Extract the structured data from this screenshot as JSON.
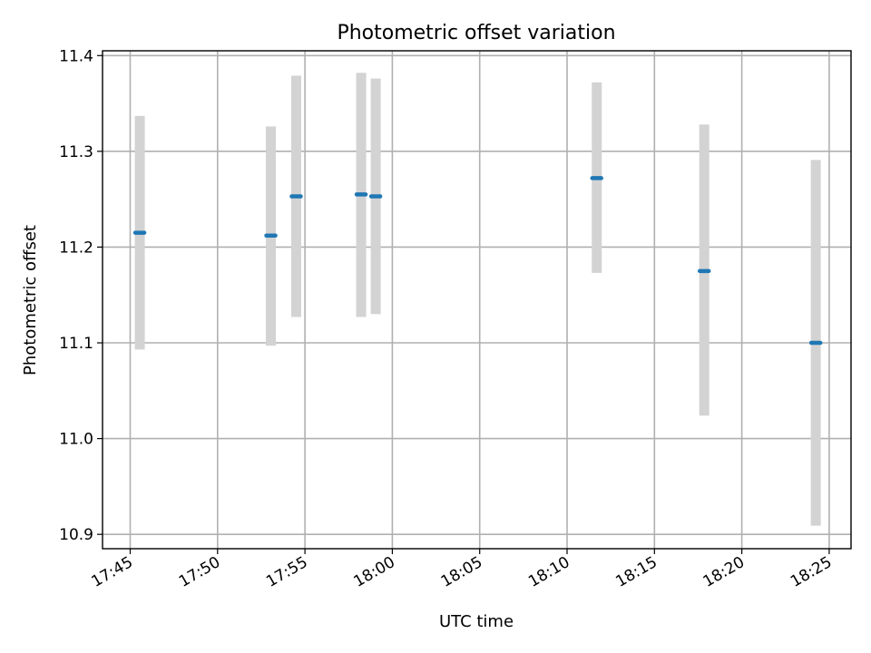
{
  "chart_data": {
    "type": "scatter",
    "title": "Photometric offset variation",
    "xlabel": "UTC time",
    "ylabel": "Photometric offset",
    "grid": true,
    "x_tick_labels": [
      "17:45",
      "17:50",
      "17:55",
      "18:00",
      "18:05",
      "18:10",
      "18:15",
      "18:20",
      "18:25"
    ],
    "y_tick_values": [
      10.9,
      11.0,
      11.1,
      11.2,
      11.3,
      11.4
    ],
    "y_tick_labels": [
      "10.9",
      "11.0",
      "11.1",
      "11.2",
      "11.3",
      "11.4"
    ],
    "xlim": [
      "17:43:25",
      "18:26:15"
    ],
    "ylim": [
      10.885,
      11.405
    ],
    "series": [
      {
        "points": [
          {
            "x": "17:45:33",
            "y": 11.215,
            "err_low": 11.093,
            "err_high": 11.337
          },
          {
            "x": "17:53:03",
            "y": 11.212,
            "err_low": 11.097,
            "err_high": 11.326
          },
          {
            "x": "17:54:30",
            "y": 11.253,
            "err_low": 11.127,
            "err_high": 11.379
          },
          {
            "x": "17:58:13",
            "y": 11.255,
            "err_low": 11.127,
            "err_high": 11.382
          },
          {
            "x": "17:59:03",
            "y": 11.253,
            "err_low": 11.13,
            "err_high": 11.376
          },
          {
            "x": "18:11:42",
            "y": 11.272,
            "err_low": 11.173,
            "err_high": 11.372
          },
          {
            "x": "18:17:51",
            "y": 11.175,
            "err_low": 11.024,
            "err_high": 11.328
          },
          {
            "x": "18:24:14",
            "y": 11.1,
            "err_low": 10.909,
            "err_high": 11.291
          }
        ]
      }
    ],
    "colors": {
      "marker": "#1f77b4",
      "errorbar": "#d3d3d3",
      "grid": "#b0b0b0"
    }
  }
}
